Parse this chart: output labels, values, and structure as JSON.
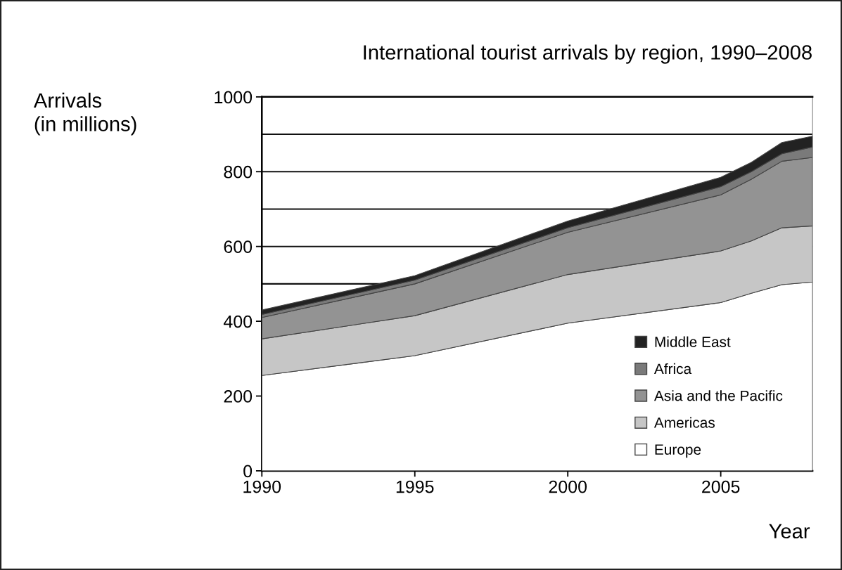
{
  "chart_data": {
    "type": "area",
    "stacked": true,
    "title": "International tourist arrivals by region, 1990–2008",
    "ylabel": "Arrivals\n(in millions)",
    "xlabel": "Year",
    "x": [
      1990,
      1995,
      2000,
      2005,
      2006,
      2007,
      2008
    ],
    "series": [
      {
        "name": "Europe",
        "color": "#ffffff",
        "values": [
          255,
          308,
          395,
          450,
          475,
          498,
          505
        ]
      },
      {
        "name": "Americas",
        "color": "#c6c6c6",
        "values": [
          98,
          107,
          130,
          138,
          140,
          152,
          150
        ]
      },
      {
        "name": "Asia and the Pacific",
        "color": "#939393",
        "values": [
          57,
          85,
          113,
          150,
          165,
          178,
          183
        ]
      },
      {
        "name": "Africa",
        "color": "#7a7a7a",
        "values": [
          8,
          10,
          12,
          22,
          20,
          20,
          28
        ]
      },
      {
        "name": "Middle East",
        "color": "#222222",
        "values": [
          12,
          12,
          18,
          25,
          25,
          30,
          29
        ]
      }
    ],
    "xlim": [
      1990,
      2008
    ],
    "xticks": [
      1990,
      1995,
      2000,
      2005
    ],
    "ylim": [
      0,
      1000
    ],
    "yticks": [
      0,
      200,
      400,
      {
        "value": 500,
        "label": null
      },
      600,
      {
        "value": 700,
        "label": null
      },
      800,
      {
        "value": 900,
        "label": null
      },
      1000
    ],
    "grid": "y",
    "legend": "bottom right"
  }
}
